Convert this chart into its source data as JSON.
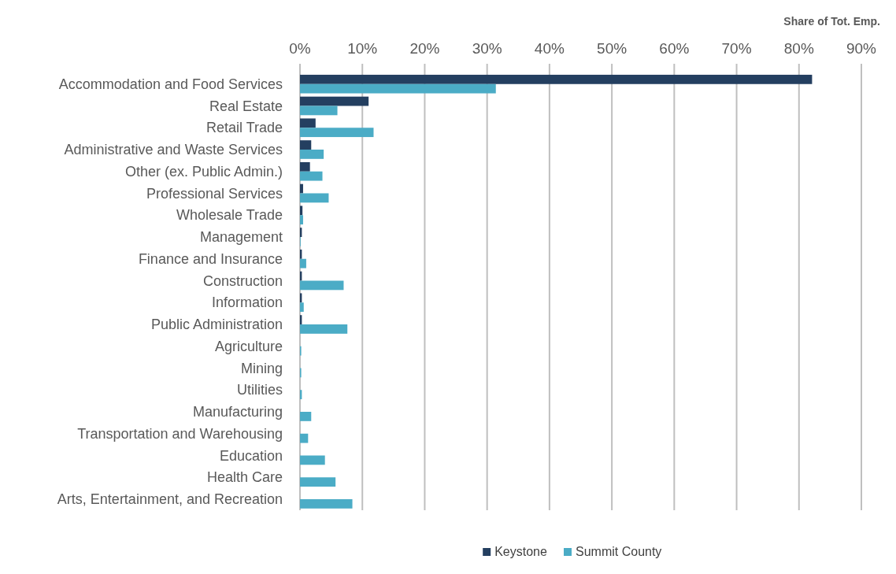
{
  "chart_data": {
    "type": "bar",
    "orientation": "horizontal",
    "xlabel": "Share of Tot. Emp.",
    "categories": [
      "Accommodation and Food Services",
      "Real Estate",
      "Retail Trade",
      "Administrative and Waste Services",
      "Other (ex. Public Admin.)",
      "Professional Services",
      "Wholesale Trade",
      "Management",
      "Finance and Insurance",
      "Construction",
      "Information",
      "Public Administration",
      "Agriculture",
      "Mining",
      "Utilities",
      "Manufacturing",
      "Transportation and Warehousing",
      "Education",
      "Health Care",
      "Arts, Entertainment, and Recreation"
    ],
    "series": [
      {
        "name": "Keystone",
        "color": "#243f60",
        "values": [
          82.1,
          11.0,
          2.5,
          1.8,
          1.6,
          0.5,
          0.4,
          0.3,
          0.3,
          0.3,
          0.3,
          0.3,
          0,
          0,
          0,
          0,
          0,
          0,
          0,
          0
        ]
      },
      {
        "name": "Summit County",
        "color": "#4bacc6",
        "values": [
          31.4,
          6.0,
          11.8,
          3.8,
          3.6,
          4.6,
          0.5,
          0.1,
          1.0,
          7.0,
          0.6,
          7.6,
          0.2,
          0.2,
          0.3,
          1.8,
          1.3,
          4.0,
          5.7,
          8.4
        ]
      }
    ],
    "xlim": [
      0,
      90
    ],
    "xticks": [
      {
        "value": 0,
        "label": "0%"
      },
      {
        "value": 10,
        "label": "10%"
      },
      {
        "value": 20,
        "label": "20%"
      },
      {
        "value": 30,
        "label": "30%"
      },
      {
        "value": 40,
        "label": "40%"
      },
      {
        "value": 50,
        "label": "50%"
      },
      {
        "value": 60,
        "label": "60%"
      },
      {
        "value": 70,
        "label": "70%"
      },
      {
        "value": 80,
        "label": "80%"
      },
      {
        "value": 90,
        "label": "90%"
      }
    ],
    "grid": "x",
    "legend": "bottom"
  }
}
